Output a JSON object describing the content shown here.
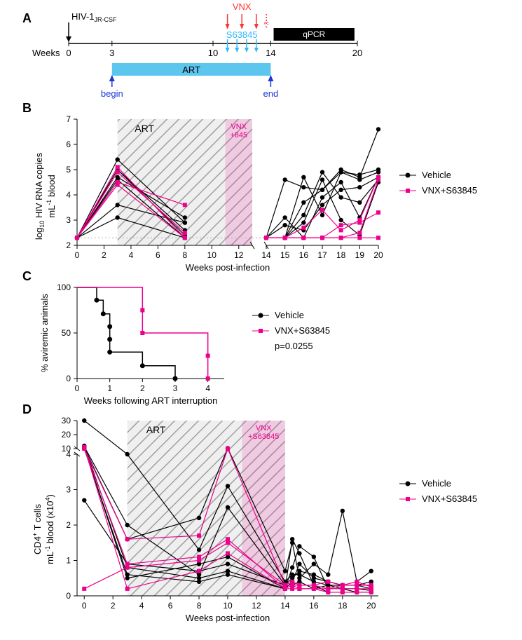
{
  "colors": {
    "vehicle": "#000000",
    "vnx": "#ff3333",
    "s63845": "#33b8ff",
    "art_box": "#5dc6ef",
    "art_text": "#1a36d6",
    "pink": "#ec008c",
    "pink_shade": "#ec008c",
    "qpcr_box": "#000000",
    "hatched_fill": "#d0d0d0",
    "hatched_line": "#a0a0a0",
    "axis": "#000000",
    "dash": "#b0b0b0"
  },
  "labels": {
    "A": "A",
    "B": "B",
    "C": "C",
    "D": "D"
  },
  "panelA": {
    "hiv_label_main": "HIV-1",
    "hiv_label_sub": "JR-CSF",
    "weeks_label": "Weeks",
    "vnx_label": "VNX",
    "s63845_label": "S63845",
    "qpcr_label": "qPCR",
    "art_label": "ART",
    "begin_label": "begin",
    "end_label": "end",
    "weeks_ticks": [
      0,
      3,
      10,
      14,
      20
    ],
    "vnx_arrow_weeks": [
      11,
      12,
      13
    ],
    "s63845_arrow_weeks": [
      11,
      11.66,
      12.33,
      13
    ],
    "art_span": [
      3,
      14
    ],
    "qpcr_span": [
      14.2,
      19.8
    ],
    "vnx_dashed_arrow_week": 13.7
  },
  "panelB": {
    "ylabel_line1": "log",
    "ylabel_sub": "10",
    "ylabel_line2": " HIV RNA copies",
    "ylabel_line3": "mL",
    "ylabel_sup": "-1",
    "ylabel_line4": " blood",
    "xlabel": "Weeks post-infection",
    "art_box_label": "ART",
    "vnx_box_label": "VNX",
    "vnx_box_label2": "+845",
    "legend_vehicle": "Vehicle",
    "legend_vnx": "VNX+S63845",
    "xlim1": [
      0,
      13
    ],
    "xlim2": [
      14,
      20
    ],
    "ylim": [
      2,
      7
    ],
    "yticks": [
      2,
      3,
      4,
      5,
      6,
      7
    ],
    "xticks1": [
      0,
      2,
      4,
      6,
      8,
      10,
      12
    ],
    "xticks2": [
      14,
      15,
      16,
      17,
      18,
      19,
      20
    ],
    "art_shade_span": [
      3,
      13
    ],
    "vnx_shade_span": [
      11,
      13
    ],
    "lod": 2.3,
    "vehicle_series": [
      [
        [
          0,
          2.3
        ],
        [
          3,
          5.4
        ],
        [
          8,
          2.9
        ],
        [
          14,
          2.3
        ],
        [
          15,
          2.3
        ],
        [
          16,
          4.7
        ],
        [
          17,
          3.2
        ],
        [
          18,
          4.9
        ],
        [
          19,
          4.6
        ],
        [
          20,
          4.9
        ]
      ],
      [
        [
          0,
          2.3
        ],
        [
          3,
          5.0
        ],
        [
          8,
          2.6
        ],
        [
          14,
          2.3
        ],
        [
          15,
          4.6
        ],
        [
          16,
          4.3
        ],
        [
          17,
          4.2
        ],
        [
          18,
          4.9
        ],
        [
          19,
          4.8
        ],
        [
          20,
          5.0
        ]
      ],
      [
        [
          0,
          2.3
        ],
        [
          3,
          5.0
        ],
        [
          8,
          2.4
        ],
        [
          14,
          2.3
        ],
        [
          15,
          2.3
        ],
        [
          16,
          3.2
        ],
        [
          17,
          4.9
        ],
        [
          18,
          3.9
        ],
        [
          19,
          3.7
        ],
        [
          20,
          4.6
        ]
      ],
      [
        [
          0,
          2.3
        ],
        [
          3,
          4.6
        ],
        [
          8,
          2.3
        ],
        [
          14,
          2.3
        ],
        [
          15,
          2.3
        ],
        [
          16,
          3.7
        ],
        [
          17,
          4.2
        ],
        [
          18,
          5.0
        ],
        [
          19,
          4.7
        ],
        [
          20,
          6.6
        ]
      ],
      [
        [
          0,
          2.3
        ],
        [
          3,
          3.6
        ],
        [
          8,
          2.9
        ],
        [
          14,
          2.3
        ],
        [
          15,
          2.8
        ],
        [
          16,
          2.6
        ],
        [
          17,
          3.6
        ],
        [
          18,
          4.2
        ],
        [
          19,
          4.3
        ],
        [
          20,
          4.7
        ]
      ],
      [
        [
          0,
          2.3
        ],
        [
          3,
          3.1
        ],
        [
          8,
          2.3
        ],
        [
          14,
          2.3
        ],
        [
          15,
          3.1
        ],
        [
          16,
          2.3
        ],
        [
          17,
          3.9
        ],
        [
          18,
          4.5
        ],
        [
          19,
          3.1
        ],
        [
          20,
          4.7
        ]
      ],
      [
        [
          0,
          2.3
        ],
        [
          3,
          4.7
        ],
        [
          8,
          3.1
        ],
        [
          14,
          2.3
        ],
        [
          15,
          2.3
        ],
        [
          16,
          2.9
        ],
        [
          17,
          4.6
        ],
        [
          18,
          3.0
        ],
        [
          19,
          2.4
        ],
        [
          20,
          4.5
        ]
      ]
    ],
    "vnx_series": [
      [
        [
          0,
          2.3
        ],
        [
          3,
          5.1
        ],
        [
          8,
          2.3
        ],
        [
          14,
          2.3
        ],
        [
          15,
          2.3
        ],
        [
          16,
          2.3
        ],
        [
          17,
          2.3
        ],
        [
          18,
          2.3
        ],
        [
          19,
          2.5
        ],
        [
          20,
          4.6
        ]
      ],
      [
        [
          0,
          2.3
        ],
        [
          3,
          4.5
        ],
        [
          8,
          3.6
        ],
        [
          14,
          2.3
        ],
        [
          15,
          2.3
        ],
        [
          16,
          2.7
        ],
        [
          17,
          3.4
        ],
        [
          18,
          2.6
        ],
        [
          19,
          3.0
        ],
        [
          20,
          4.7
        ]
      ],
      [
        [
          0,
          2.3
        ],
        [
          3,
          4.4
        ],
        [
          8,
          2.3
        ],
        [
          14,
          2.3
        ],
        [
          15,
          2.3
        ],
        [
          16,
          2.3
        ],
        [
          17,
          2.3
        ],
        [
          18,
          2.8
        ],
        [
          19,
          2.9
        ],
        [
          20,
          3.3
        ]
      ],
      [
        [
          0,
          2.3
        ],
        [
          3,
          4.9
        ],
        [
          8,
          2.5
        ],
        [
          14,
          2.3
        ],
        [
          15,
          2.3
        ],
        [
          16,
          2.3
        ],
        [
          17,
          2.3
        ],
        [
          18,
          2.3
        ],
        [
          19,
          2.3
        ],
        [
          20,
          2.3
        ]
      ]
    ]
  },
  "panelC": {
    "ylabel": "% aviremic animals",
    "xlabel": "Weeks following ART interruption",
    "xlim": [
      0,
      4.5
    ],
    "ylim": [
      0,
      100
    ],
    "yticks": [
      0,
      50,
      100
    ],
    "xticks": [
      0,
      1,
      2,
      3,
      4
    ],
    "legend_vehicle": "Vehicle",
    "legend_vnx": "VNX+S63845",
    "pvalue": "p=0.0255",
    "vehicle_steps": [
      [
        0,
        100
      ],
      [
        0.6,
        100
      ],
      [
        0.6,
        86
      ],
      [
        0.8,
        86
      ],
      [
        0.8,
        71
      ],
      [
        1,
        71
      ],
      [
        1,
        57
      ],
      [
        1,
        43
      ],
      [
        1,
        29
      ],
      [
        2,
        29
      ],
      [
        2,
        14
      ],
      [
        3,
        14
      ],
      [
        3,
        0
      ]
    ],
    "vnx_steps": [
      [
        0,
        100
      ],
      [
        2,
        100
      ],
      [
        2,
        75
      ],
      [
        2,
        50
      ],
      [
        4,
        50
      ],
      [
        4,
        25
      ],
      [
        4,
        0
      ]
    ],
    "vehicle_markers_x": [
      0.6,
      0.8,
      1,
      1,
      1,
      2,
      3
    ],
    "vehicle_markers_y": [
      86,
      71,
      57,
      43,
      29,
      14,
      0
    ],
    "vnx_markers_x": [
      2,
      2,
      4,
      4
    ],
    "vnx_markers_y": [
      75,
      50,
      25,
      0
    ]
  },
  "panelD": {
    "ylabel_line1": "CD4",
    "ylabel_sup1": "+",
    "ylabel_line2": " T cells",
    "ylabel_line3": "mL",
    "ylabel_sup2": "-1",
    "ylabel_line4": " blood (x10",
    "ylabel_sup3": "4",
    "ylabel_line5": ")",
    "xlabel": "Weeks post-infection",
    "art_box_label": "ART",
    "vnx_box_label": "VNX",
    "vnx_box_label2": "+S63845",
    "legend_vehicle": "Vehicle",
    "legend_vnx": "VNX+S63845",
    "xlim": [
      -0.5,
      20.5
    ],
    "xticks": [
      0,
      2,
      4,
      6,
      8,
      10,
      12,
      14,
      16,
      18,
      20
    ],
    "ylower": [
      0,
      4
    ],
    "yupper": [
      10,
      30
    ],
    "yticks_lower": [
      0,
      1,
      2,
      3,
      4
    ],
    "yticks_upper": [
      10,
      20,
      30
    ],
    "art_shade_span": [
      3,
      14
    ],
    "vnx_shade_span": [
      11,
      14
    ],
    "vehicle_series": [
      [
        [
          0,
          30
        ],
        [
          3,
          4
        ],
        [
          8,
          1.3
        ],
        [
          10,
          3.1
        ],
        [
          14,
          0.4
        ],
        [
          14.5,
          0.6
        ],
        [
          15,
          0.6
        ],
        [
          16,
          0.4
        ],
        [
          17,
          0.3
        ],
        [
          18,
          0.3
        ],
        [
          19,
          0.3
        ],
        [
          20,
          0.3
        ]
      ],
      [
        [
          0,
          11
        ],
        [
          3,
          1.6
        ],
        [
          8,
          2.2
        ],
        [
          10,
          10.3
        ],
        [
          14,
          0.7
        ],
        [
          14.5,
          1.5
        ],
        [
          15,
          0.5
        ],
        [
          16,
          0.9
        ],
        [
          17,
          0.6
        ],
        [
          18,
          2.4
        ],
        [
          19,
          0.4
        ],
        [
          20,
          0.7
        ]
      ],
      [
        [
          0,
          9
        ],
        [
          3,
          0.6
        ],
        [
          8,
          0.4
        ],
        [
          10,
          0.6
        ],
        [
          14,
          0.2
        ],
        [
          14.5,
          0.4
        ],
        [
          15,
          0.9
        ],
        [
          16,
          0.5
        ],
        [
          17,
          0.4
        ],
        [
          18,
          0.3
        ],
        [
          19,
          0.3
        ],
        [
          20,
          0.2
        ]
      ],
      [
        [
          0,
          12
        ],
        [
          3,
          0.8
        ],
        [
          8,
          0.5
        ],
        [
          10,
          0.7
        ],
        [
          14,
          0.2
        ],
        [
          14.5,
          1.6
        ],
        [
          15,
          1.2
        ],
        [
          16,
          0.3
        ],
        [
          17,
          0.1
        ],
        [
          18,
          0.1
        ],
        [
          19,
          0.1
        ],
        [
          20,
          0.1
        ]
      ],
      [
        [
          0,
          2.7
        ],
        [
          3,
          0.9
        ],
        [
          8,
          0.7
        ],
        [
          10,
          0.9
        ],
        [
          14,
          0.3
        ],
        [
          14.5,
          0.3
        ],
        [
          15,
          0.4
        ],
        [
          16,
          0.2
        ],
        [
          17,
          0.3
        ],
        [
          18,
          0.2
        ],
        [
          19,
          0.1
        ],
        [
          20,
          0.1
        ]
      ],
      [
        [
          0,
          10.5
        ],
        [
          3,
          0.5
        ],
        [
          8,
          0.9
        ],
        [
          10,
          1.1
        ],
        [
          14,
          0.2
        ],
        [
          14.5,
          0.8
        ],
        [
          15,
          1.4
        ],
        [
          16,
          1.1
        ],
        [
          17,
          0.2
        ],
        [
          18,
          0.2
        ],
        [
          19,
          0.2
        ],
        [
          20,
          0.15
        ]
      ],
      [
        [
          0,
          11.5
        ],
        [
          3,
          2.0
        ],
        [
          8,
          0.6
        ],
        [
          10,
          2.5
        ],
        [
          14,
          0.3
        ],
        [
          14.5,
          0.5
        ],
        [
          15,
          0.7
        ],
        [
          16,
          0.6
        ],
        [
          17,
          0.4
        ],
        [
          18,
          0.3
        ],
        [
          19,
          0.3
        ],
        [
          20,
          0.4
        ]
      ]
    ],
    "vnx_series": [
      [
        [
          0,
          10
        ],
        [
          3,
          1.6
        ],
        [
          8,
          1.7
        ],
        [
          10,
          8.5
        ],
        [
          14,
          0.3
        ],
        [
          14.5,
          0.3
        ],
        [
          15,
          0.3
        ],
        [
          16,
          0.3
        ],
        [
          17,
          0.4
        ],
        [
          18,
          0.3
        ],
        [
          19,
          0.3
        ],
        [
          20,
          0.3
        ]
      ],
      [
        [
          0,
          11
        ],
        [
          3,
          0.2
        ],
        [
          8,
          0.7
        ],
        [
          10,
          1.2
        ],
        [
          14,
          0.2
        ],
        [
          14.5,
          0.3
        ],
        [
          15,
          0.2
        ],
        [
          16,
          0.2
        ],
        [
          17,
          0.1
        ],
        [
          18,
          0.1
        ],
        [
          19,
          0.1
        ],
        [
          20,
          0.1
        ]
      ],
      [
        [
          0,
          0.2
        ],
        [
          3,
          0.8
        ],
        [
          8,
          1.0
        ],
        [
          10,
          1.5
        ],
        [
          14,
          0.3
        ],
        [
          14.5,
          0.4
        ],
        [
          15,
          0.3
        ],
        [
          16,
          0.3
        ],
        [
          17,
          0.2
        ],
        [
          18,
          0.3
        ],
        [
          19,
          0.4
        ],
        [
          20,
          0.25
        ]
      ],
      [
        [
          0,
          10.2
        ],
        [
          3,
          0.9
        ],
        [
          8,
          1.1
        ],
        [
          10,
          1.6
        ],
        [
          14,
          0.2
        ],
        [
          14.5,
          0.2
        ],
        [
          15,
          0.2
        ],
        [
          16,
          0.2
        ],
        [
          17,
          0.2
        ],
        [
          18,
          0.2
        ],
        [
          19,
          0.2
        ],
        [
          20,
          0.2
        ]
      ]
    ]
  }
}
